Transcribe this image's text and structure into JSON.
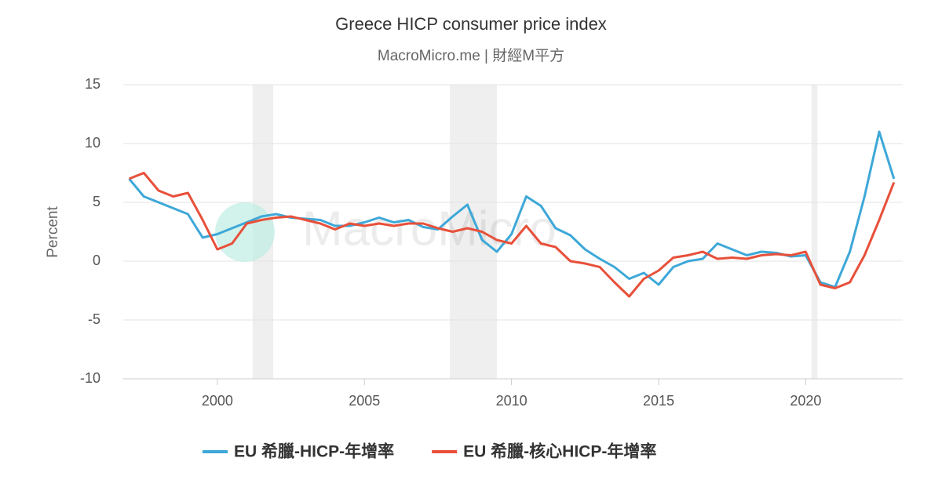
{
  "chart_data": {
    "type": "line",
    "title": "Greece HICP consumer price index",
    "subtitle": "MacroMicro.me | 財經M平方",
    "watermark": "MacroMicro",
    "y_label": "Percent",
    "x": [
      1997.0,
      1997.5,
      1998.0,
      1998.5,
      1999.0,
      1999.5,
      2000.0,
      2000.5,
      2001.0,
      2001.5,
      2002.0,
      2002.5,
      2003.0,
      2003.5,
      2004.0,
      2004.5,
      2005.0,
      2005.5,
      2006.0,
      2006.5,
      2007.0,
      2007.5,
      2008.0,
      2008.5,
      2009.0,
      2009.5,
      2010.0,
      2010.5,
      2011.0,
      2011.5,
      2012.0,
      2012.5,
      2013.0,
      2013.5,
      2014.0,
      2014.5,
      2015.0,
      2015.5,
      2016.0,
      2016.5,
      2017.0,
      2017.5,
      2018.0,
      2018.5,
      2019.0,
      2019.5,
      2020.0,
      2020.5,
      2021.0,
      2021.5,
      2022.0,
      2022.5,
      2023.0
    ],
    "series": [
      {
        "name": "EU 希臘-HICP-年增率",
        "color": "#3ea8d8",
        "values": [
          7.0,
          5.5,
          5.0,
          4.5,
          4.0,
          2.0,
          2.3,
          2.8,
          3.3,
          3.8,
          4.0,
          3.7,
          3.6,
          3.5,
          3.0,
          3.0,
          3.3,
          3.7,
          3.3,
          3.5,
          2.9,
          2.7,
          3.8,
          4.8,
          1.8,
          0.8,
          2.3,
          5.5,
          4.7,
          2.8,
          2.2,
          1.0,
          0.2,
          -0.5,
          -1.5,
          -1.0,
          -2.0,
          -0.5,
          0.0,
          0.2,
          1.5,
          1.0,
          0.5,
          0.8,
          0.7,
          0.4,
          0.5,
          -1.8,
          -2.2,
          0.8,
          5.5,
          11.0,
          7.0
        ]
      },
      {
        "name": "EU 希臘-核心HICP-年增率",
        "color": "#e8503a",
        "values": [
          7.0,
          7.5,
          6.0,
          5.5,
          5.8,
          3.5,
          1.0,
          1.5,
          3.2,
          3.5,
          3.7,
          3.8,
          3.5,
          3.2,
          2.7,
          3.2,
          3.0,
          3.2,
          3.0,
          3.2,
          3.2,
          2.8,
          2.5,
          2.8,
          2.5,
          1.8,
          1.5,
          3.0,
          1.5,
          1.2,
          0.0,
          -0.2,
          -0.5,
          -1.8,
          -3.0,
          -1.5,
          -0.8,
          0.3,
          0.5,
          0.8,
          0.2,
          0.3,
          0.2,
          0.5,
          0.6,
          0.5,
          0.8,
          -2.0,
          -2.3,
          -1.8,
          0.5,
          3.5,
          6.7
        ]
      }
    ],
    "shaded_ranges": [
      [
        2001.2,
        2001.9
      ],
      [
        2007.9,
        2009.5
      ],
      [
        2020.2,
        2020.4
      ]
    ],
    "xlim": [
      1996.8,
      2023.3
    ],
    "xticks": [
      2000,
      2005,
      2010,
      2015,
      2020
    ],
    "ylim": [
      -10,
      15
    ],
    "yticks": [
      -10,
      -5,
      0,
      5,
      10,
      15
    ],
    "grid": true,
    "legend": "bottom"
  }
}
